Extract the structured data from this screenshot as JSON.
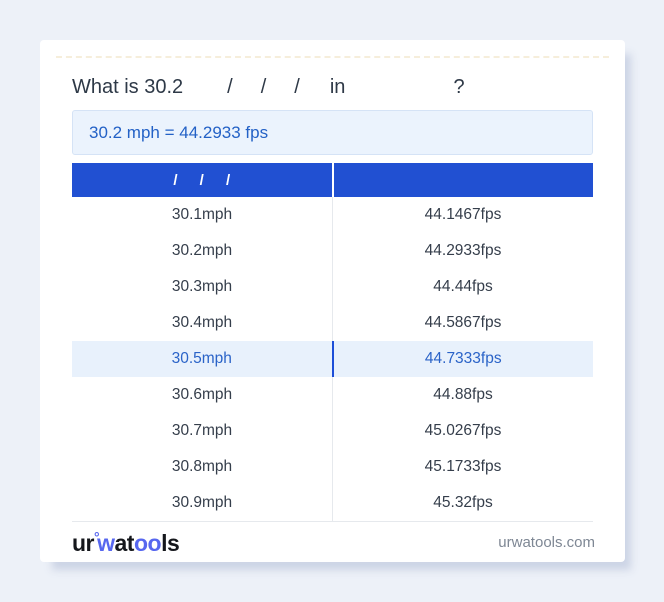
{
  "title": {
    "prefix": "What is 30.2",
    "slash1": "/",
    "slash2": "/",
    "slash3": "/",
    "connector": "in",
    "question": "?"
  },
  "result": {
    "text": "30.2 mph = 44.2933 fps"
  },
  "conversion_table": {
    "header": {
      "left": "/ / /",
      "right": ""
    },
    "rows": [
      {
        "from": "30.1mph",
        "to": "44.1467fps"
      },
      {
        "from": "30.2mph",
        "to": "44.2933fps"
      },
      {
        "from": "30.3mph",
        "to": "44.44fps"
      },
      {
        "from": "30.4mph",
        "to": "44.5867fps"
      },
      {
        "from": "30.5mph",
        "to": "44.7333fps"
      },
      {
        "from": "30.6mph",
        "to": "44.88fps"
      },
      {
        "from": "30.7mph",
        "to": "45.0267fps"
      },
      {
        "from": "30.8mph",
        "to": "45.1733fps"
      },
      {
        "from": "30.9mph",
        "to": "45.32fps"
      }
    ],
    "highlighted_index": 4
  },
  "footer": {
    "logo": {
      "part1": "ur",
      "degree": "°",
      "part2": "w",
      "part3": "at",
      "part4": "oo",
      "part5": "ls"
    },
    "site": "urwatools.com"
  },
  "colors": {
    "page_bg": "#edf1f8",
    "header_blue": "#2150d2",
    "highlight_bg": "#e8f1fc",
    "link_blue": "#2a63c8",
    "highlight_divider": "#1c4ed8",
    "result_bg": "#ebf3fd",
    "result_text": "#2361c6",
    "logo_blue": "#5767ef"
  }
}
